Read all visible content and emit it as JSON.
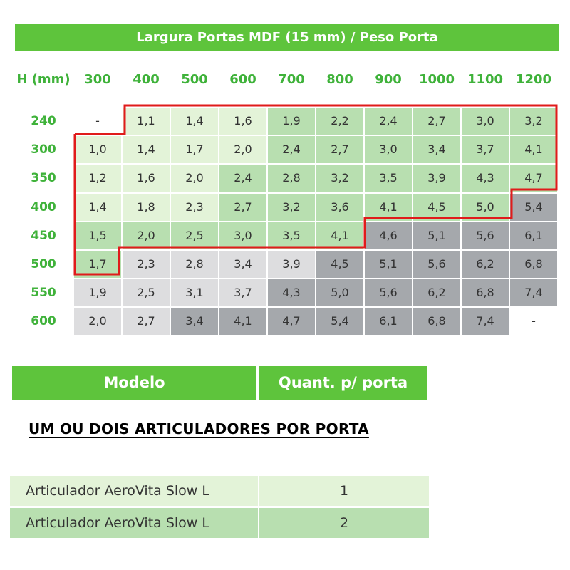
{
  "title": "Largura Portas MDF (15 mm) / Peso Porta",
  "h_label": "H (mm)",
  "widths": [
    "300",
    "400",
    "500",
    "600",
    "700",
    "800",
    "900",
    "1000",
    "1100",
    "1200"
  ],
  "rows": [
    {
      "h": "240",
      "values": [
        "-",
        "1,1",
        "1,4",
        "1,6",
        "1,9",
        "2,2",
        "2,4",
        "2,7",
        "3,0",
        "3,2"
      ],
      "shades": [
        0,
        1,
        1,
        1,
        2,
        2,
        2,
        2,
        2,
        2
      ]
    },
    {
      "h": "300",
      "values": [
        "1,0",
        "1,4",
        "1,7",
        "2,0",
        "2,4",
        "2,7",
        "3,0",
        "3,4",
        "3,7",
        "4,1"
      ],
      "shades": [
        1,
        1,
        1,
        1,
        2,
        2,
        2,
        2,
        2,
        2
      ]
    },
    {
      "h": "350",
      "values": [
        "1,2",
        "1,6",
        "2,0",
        "2,4",
        "2,8",
        "3,2",
        "3,5",
        "3,9",
        "4,3",
        "4,7"
      ],
      "shades": [
        1,
        1,
        1,
        2,
        2,
        2,
        2,
        2,
        2,
        2
      ]
    },
    {
      "h": "400",
      "values": [
        "1,4",
        "1,8",
        "2,3",
        "2,7",
        "3,2",
        "3,6",
        "4,1",
        "4,5",
        "5,0",
        "5,4"
      ],
      "shades": [
        1,
        1,
        1,
        2,
        2,
        2,
        2,
        2,
        2,
        4
      ]
    },
    {
      "h": "450",
      "values": [
        "1,5",
        "2,0",
        "2,5",
        "3,0",
        "3,5",
        "4,1",
        "4,6",
        "5,1",
        "5,6",
        "6,1"
      ],
      "shades": [
        2,
        2,
        2,
        2,
        2,
        2,
        4,
        4,
        4,
        4
      ]
    },
    {
      "h": "500",
      "values": [
        "1,7",
        "2,3",
        "2,8",
        "3,4",
        "3,9",
        "4,5",
        "5,1",
        "5,6",
        "6,2",
        "6,8"
      ],
      "shades": [
        2,
        3,
        3,
        3,
        3,
        4,
        4,
        4,
        4,
        4
      ]
    },
    {
      "h": "550",
      "values": [
        "1,9",
        "2,5",
        "3,1",
        "3,7",
        "4,3",
        "5,0",
        "5,6",
        "6,2",
        "6,8",
        "7,4"
      ],
      "shades": [
        3,
        3,
        3,
        3,
        4,
        4,
        4,
        4,
        4,
        4
      ]
    },
    {
      "h": "600",
      "values": [
        "2,0",
        "2,7",
        "3,4",
        "4,1",
        "4,7",
        "5,4",
        "6,1",
        "6,8",
        "7,4",
        "-"
      ],
      "shades": [
        3,
        3,
        4,
        4,
        4,
        4,
        4,
        4,
        4,
        0
      ]
    }
  ],
  "colors": {
    "green": "#5ec43c",
    "highlight_outline": "#e01b1b"
  },
  "models_table": {
    "headers": [
      "Modelo",
      "Quant. p/ porta"
    ],
    "note": "UM OU DOIS ARTICULADORES POR PORTA",
    "rows": [
      {
        "name": "Articulador AeroVita Slow L",
        "qty": "1"
      },
      {
        "name": "Articulador AeroVita Slow L",
        "qty": "2"
      }
    ]
  }
}
